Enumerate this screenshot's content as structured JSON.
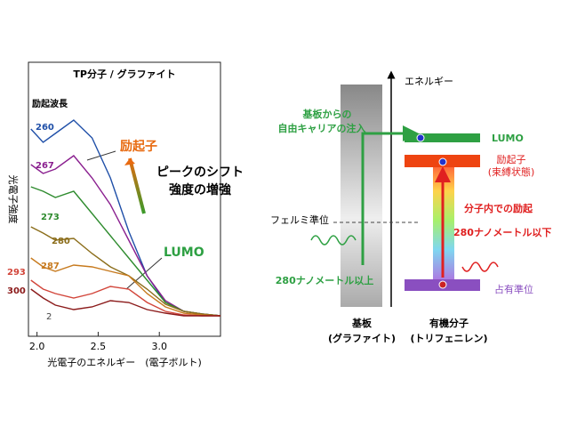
{
  "chart_data": {
    "type": "line",
    "title": "TP分子 / グラファイト",
    "legend_title": "励起波長",
    "x_label": "光電子のエネルギー　(電子ボルト)",
    "y_label": "光電子強度",
    "annotations": [
      "励起子",
      "ピークのシフト",
      "強度の増強",
      "LUMO",
      "2"
    ],
    "x": [
      1.95,
      2.05,
      2.15,
      2.3,
      2.45,
      2.6,
      2.75,
      2.9,
      3.05,
      3.2,
      3.35,
      3.5
    ],
    "series": [
      {
        "name": "260",
        "color": "#1f4fa8",
        "values": [
          233,
          218,
          228,
          243,
          223,
          178,
          118,
          68,
          38,
          28,
          25,
          23
        ]
      },
      {
        "name": "267",
        "color": "#8a1f8f",
        "values": [
          193,
          183,
          188,
          203,
          178,
          148,
          108,
          68,
          40,
          28,
          25,
          23
        ]
      },
      {
        "name": "273",
        "color": "#2e8b2e",
        "values": [
          168,
          163,
          156,
          163,
          138,
          113,
          88,
          63,
          38,
          28,
          25,
          23
        ]
      },
      {
        "name": "280",
        "color": "#8b6d1a",
        "values": [
          123,
          116,
          108,
          110,
          93,
          78,
          68,
          53,
          36,
          28,
          25,
          23
        ]
      },
      {
        "name": "287",
        "color": "#c77a1e",
        "values": [
          88,
          78,
          73,
          80,
          78,
          73,
          68,
          48,
          33,
          26,
          24,
          23
        ]
      },
      {
        "name": "293",
        "color": "#d2453a",
        "values": [
          63,
          53,
          48,
          43,
          48,
          56,
          53,
          38,
          28,
          24,
          23,
          23
        ]
      },
      {
        "name": "300",
        "color": "#8b1a1a",
        "values": [
          53,
          43,
          35,
          30,
          33,
          40,
          38,
          30,
          26,
          23,
          23,
          23
        ]
      }
    ],
    "xlim": [
      1.93,
      3.5
    ],
    "xticks": [
      {
        "value": 2.0,
        "label": "2.0"
      },
      {
        "value": 2.5,
        "label": "2.5"
      },
      {
        "value": 3.0,
        "label": "3.0"
      }
    ],
    "ylim": [
      0,
      308
    ]
  },
  "diagram": {
    "axis_label": "エネルギー",
    "injection": [
      "基板からの",
      "自由キャリアの注入"
    ],
    "fermi": "フェルミ準位",
    "lumo": "LUMO",
    "exciton": [
      "励起子",
      "(束縛状態)"
    ],
    "excitation": "分子内での励起",
    "below": "280ナノメートル以下",
    "above": "280ナノメートル以上",
    "occupied": "占有準位",
    "substrate": [
      "基板",
      "(グラファイト)"
    ],
    "molecule": [
      "有機分子",
      "(トリフェニレン)"
    ]
  }
}
